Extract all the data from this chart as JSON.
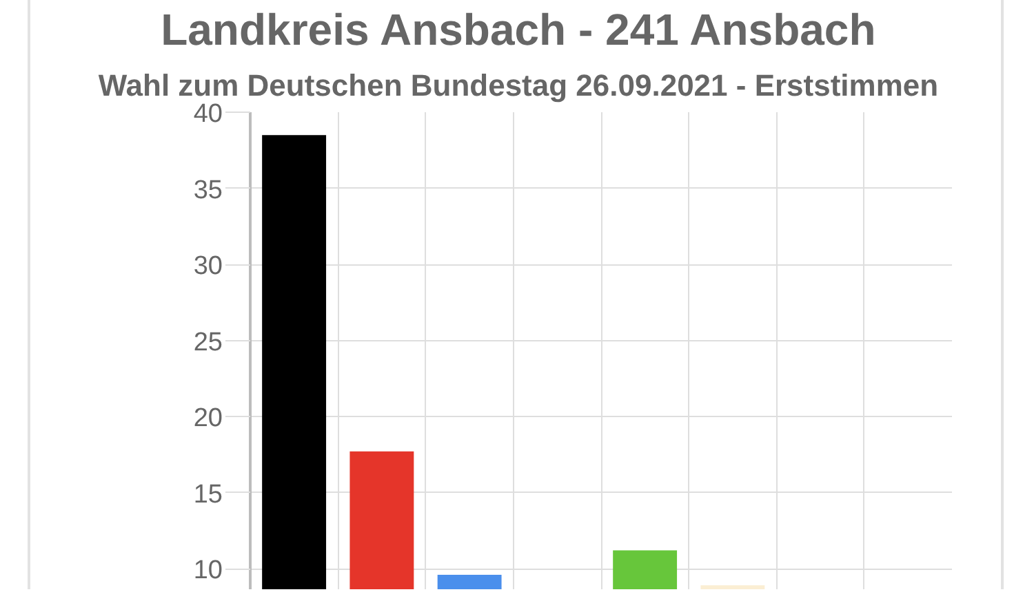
{
  "chart_data": {
    "type": "bar",
    "title": "Landkreis Ansbach - 241 Ansbach",
    "subtitle": "Wahl zum Deutschen Bundestag 26.09.2021  - Erststimmen",
    "categories": [
      null,
      null,
      null,
      null,
      null,
      null,
      null,
      null
    ],
    "values": [
      38.5,
      17.7,
      9.6,
      null,
      11.2,
      8.9,
      null,
      null
    ],
    "colors": [
      "#000000",
      "#e5352a",
      "#4a8fec",
      "#999999",
      "#67c63b",
      "#fbeed3",
      "#999999",
      "#999999"
    ],
    "ylim": [
      8.6,
      40
    ],
    "yticks": [
      10,
      15,
      20,
      25,
      30,
      35,
      40
    ],
    "grid": true,
    "tick_labels": "y"
  }
}
